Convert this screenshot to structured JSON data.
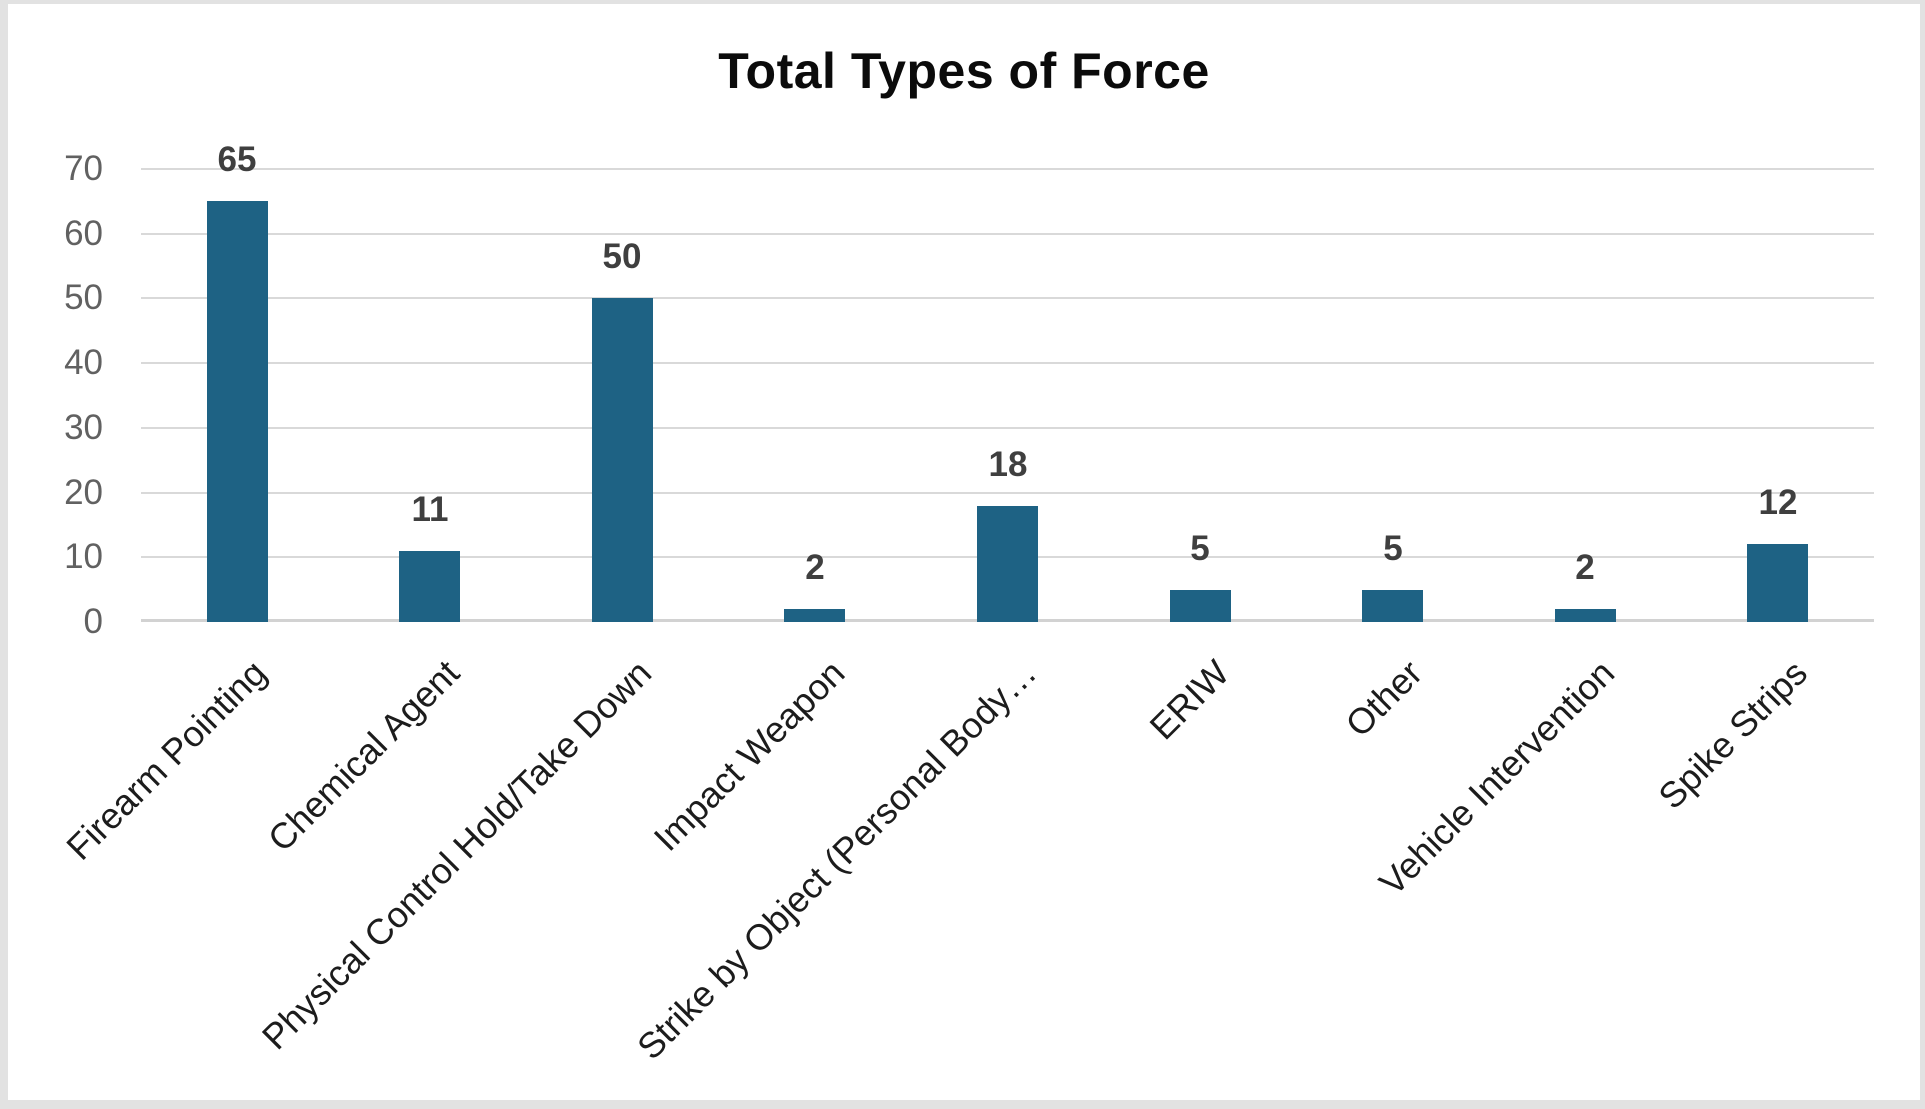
{
  "chart_data": {
    "type": "bar",
    "title": "Total Types of Force",
    "categories": [
      "Firearm Pointing",
      "Chemical Agent",
      "Physical Control Hold/Take Down",
      "Impact Weapon",
      "Strike by Object (Personal Body…",
      "ERIW",
      "Other",
      "Vehicle Intervention",
      "Spike Strips"
    ],
    "values": [
      65,
      11,
      50,
      2,
      18,
      5,
      5,
      2,
      12
    ],
    "data_labels": [
      "65",
      "11",
      "50",
      "2",
      "18",
      "5",
      "5",
      "2",
      "12"
    ],
    "xlabel": "",
    "ylabel": "",
    "ylim": [
      0,
      70
    ],
    "yticks": [
      0,
      10,
      20,
      30,
      40,
      50,
      60,
      70
    ],
    "ytick_step": 10,
    "grid": true,
    "legend": "none",
    "xlabel_rotation_deg": -45
  },
  "colors": {
    "bar_fill": "#1e6284",
    "gridline": "#d9d9d9",
    "axis_baseline": "#d2d2d2",
    "data_label": "#3f3f3f",
    "y_tick_label": "#616161",
    "x_category_label": "#1c1c1c",
    "title": "#0b0b0b",
    "chart_border": "#e2e2e2",
    "background": "#ffffff"
  }
}
